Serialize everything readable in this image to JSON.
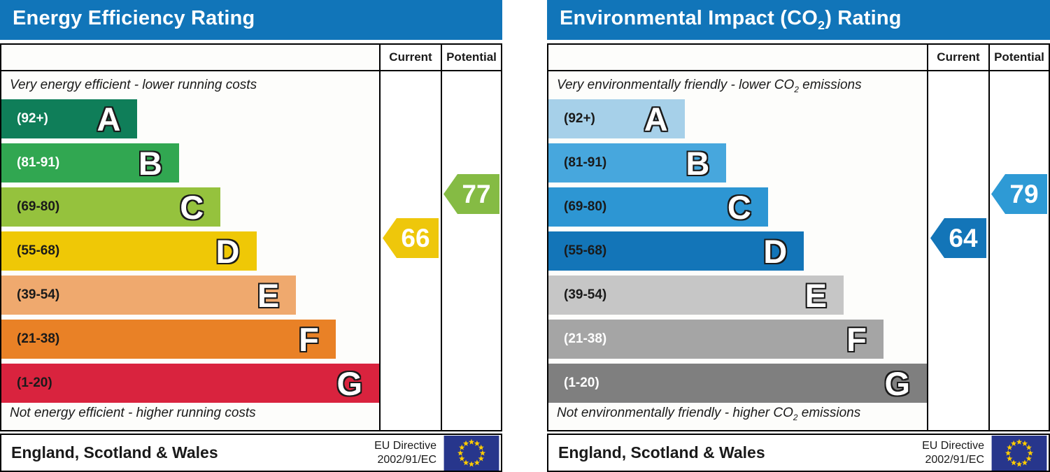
{
  "theme": {
    "header_blue": "#1175b9",
    "eu_flag_blue": "#27368c",
    "eu_star_gold": "#ffcc00",
    "band_outline_text": "#ffffff"
  },
  "chart_data": [
    {
      "type": "bar",
      "title": "Energy Efficiency Rating",
      "title_parts": {
        "pre": "Energy Efficiency Rating",
        "sub": "",
        "post": ""
      },
      "columns": {
        "current": "Current",
        "potential": "Potential"
      },
      "top_caption": "Very energy efficient - lower running costs",
      "top_caption_parts": {
        "pre": "Very energy efficient - lower running costs",
        "sub": "",
        "post": ""
      },
      "bottom_caption": "Not energy efficient - higher running costs",
      "bottom_caption_parts": {
        "pre": "Not energy efficient - higher running costs",
        "sub": "",
        "post": ""
      },
      "bands": [
        {
          "letter": "A",
          "range": "(92+)",
          "color": "#0f7e59",
          "text_color": "#ffffff",
          "width_pct": 36
        },
        {
          "letter": "B",
          "range": "(81-91)",
          "color": "#31a751",
          "text_color": "#ffffff",
          "width_pct": 47
        },
        {
          "letter": "C",
          "range": "(69-80)",
          "color": "#95c23d",
          "text_color": "#1a1a1a",
          "width_pct": 58
        },
        {
          "letter": "D",
          "range": "(55-68)",
          "color": "#efc806",
          "text_color": "#1a1a1a",
          "width_pct": 67.5
        },
        {
          "letter": "E",
          "range": "(39-54)",
          "color": "#efa96e",
          "text_color": "#1a1a1a",
          "width_pct": 78
        },
        {
          "letter": "F",
          "range": "(21-38)",
          "color": "#e98126",
          "text_color": "#1a1a1a",
          "width_pct": 88.5
        },
        {
          "letter": "G",
          "range": "(1-20)",
          "color": "#d9233e",
          "text_color": "#1a1a1a",
          "width_pct": 100
        }
      ],
      "current": {
        "value": "66",
        "band": "D",
        "band_index": 3,
        "color": "#eec70b"
      },
      "potential": {
        "value": "77",
        "band": "C",
        "band_index": 2,
        "color": "#85bb44"
      },
      "footer": {
        "region": "England, Scotland & Wales",
        "directive_line1": "EU Directive",
        "directive_line2": "2002/91/EC"
      }
    },
    {
      "type": "bar",
      "title": "Environmental Impact (CO2) Rating",
      "title_parts": {
        "pre": "Environmental Impact (CO",
        "sub": "2",
        "post": ") Rating"
      },
      "columns": {
        "current": "Current",
        "potential": "Potential"
      },
      "top_caption": "Very environmentally friendly - lower CO2 emissions",
      "top_caption_parts": {
        "pre": "Very environmentally friendly - lower CO",
        "sub": "2",
        "post": " emissions"
      },
      "bottom_caption": "Not environmentally friendly - higher CO2 emissions",
      "bottom_caption_parts": {
        "pre": "Not environmentally friendly - higher CO",
        "sub": "2",
        "post": " emissions"
      },
      "bands": [
        {
          "letter": "A",
          "range": "(92+)",
          "color": "#a6d0e9",
          "text_color": "#1a1a1a",
          "width_pct": 36
        },
        {
          "letter": "B",
          "range": "(81-91)",
          "color": "#47a7dd",
          "text_color": "#1a1a1a",
          "width_pct": 47
        },
        {
          "letter": "C",
          "range": "(69-80)",
          "color": "#2d96d3",
          "text_color": "#1a1a1a",
          "width_pct": 58
        },
        {
          "letter": "D",
          "range": "(55-68)",
          "color": "#1375b8",
          "text_color": "#1a1a1a",
          "width_pct": 67.5
        },
        {
          "letter": "E",
          "range": "(39-54)",
          "color": "#c6c6c6",
          "text_color": "#1a1a1a",
          "width_pct": 78
        },
        {
          "letter": "F",
          "range": "(21-38)",
          "color": "#a5a5a5",
          "text_color": "#ffffff",
          "width_pct": 88.5
        },
        {
          "letter": "G",
          "range": "(1-20)",
          "color": "#7f7f7f",
          "text_color": "#ffffff",
          "width_pct": 100
        }
      ],
      "current": {
        "value": "64",
        "band": "D",
        "band_index": 3,
        "color": "#1375b8"
      },
      "potential": {
        "value": "79",
        "band": "C",
        "band_index": 2,
        "color": "#2e9ad5"
      },
      "footer": {
        "region": "England, Scotland & Wales",
        "directive_line1": "EU Directive",
        "directive_line2": "2002/91/EC"
      }
    }
  ]
}
